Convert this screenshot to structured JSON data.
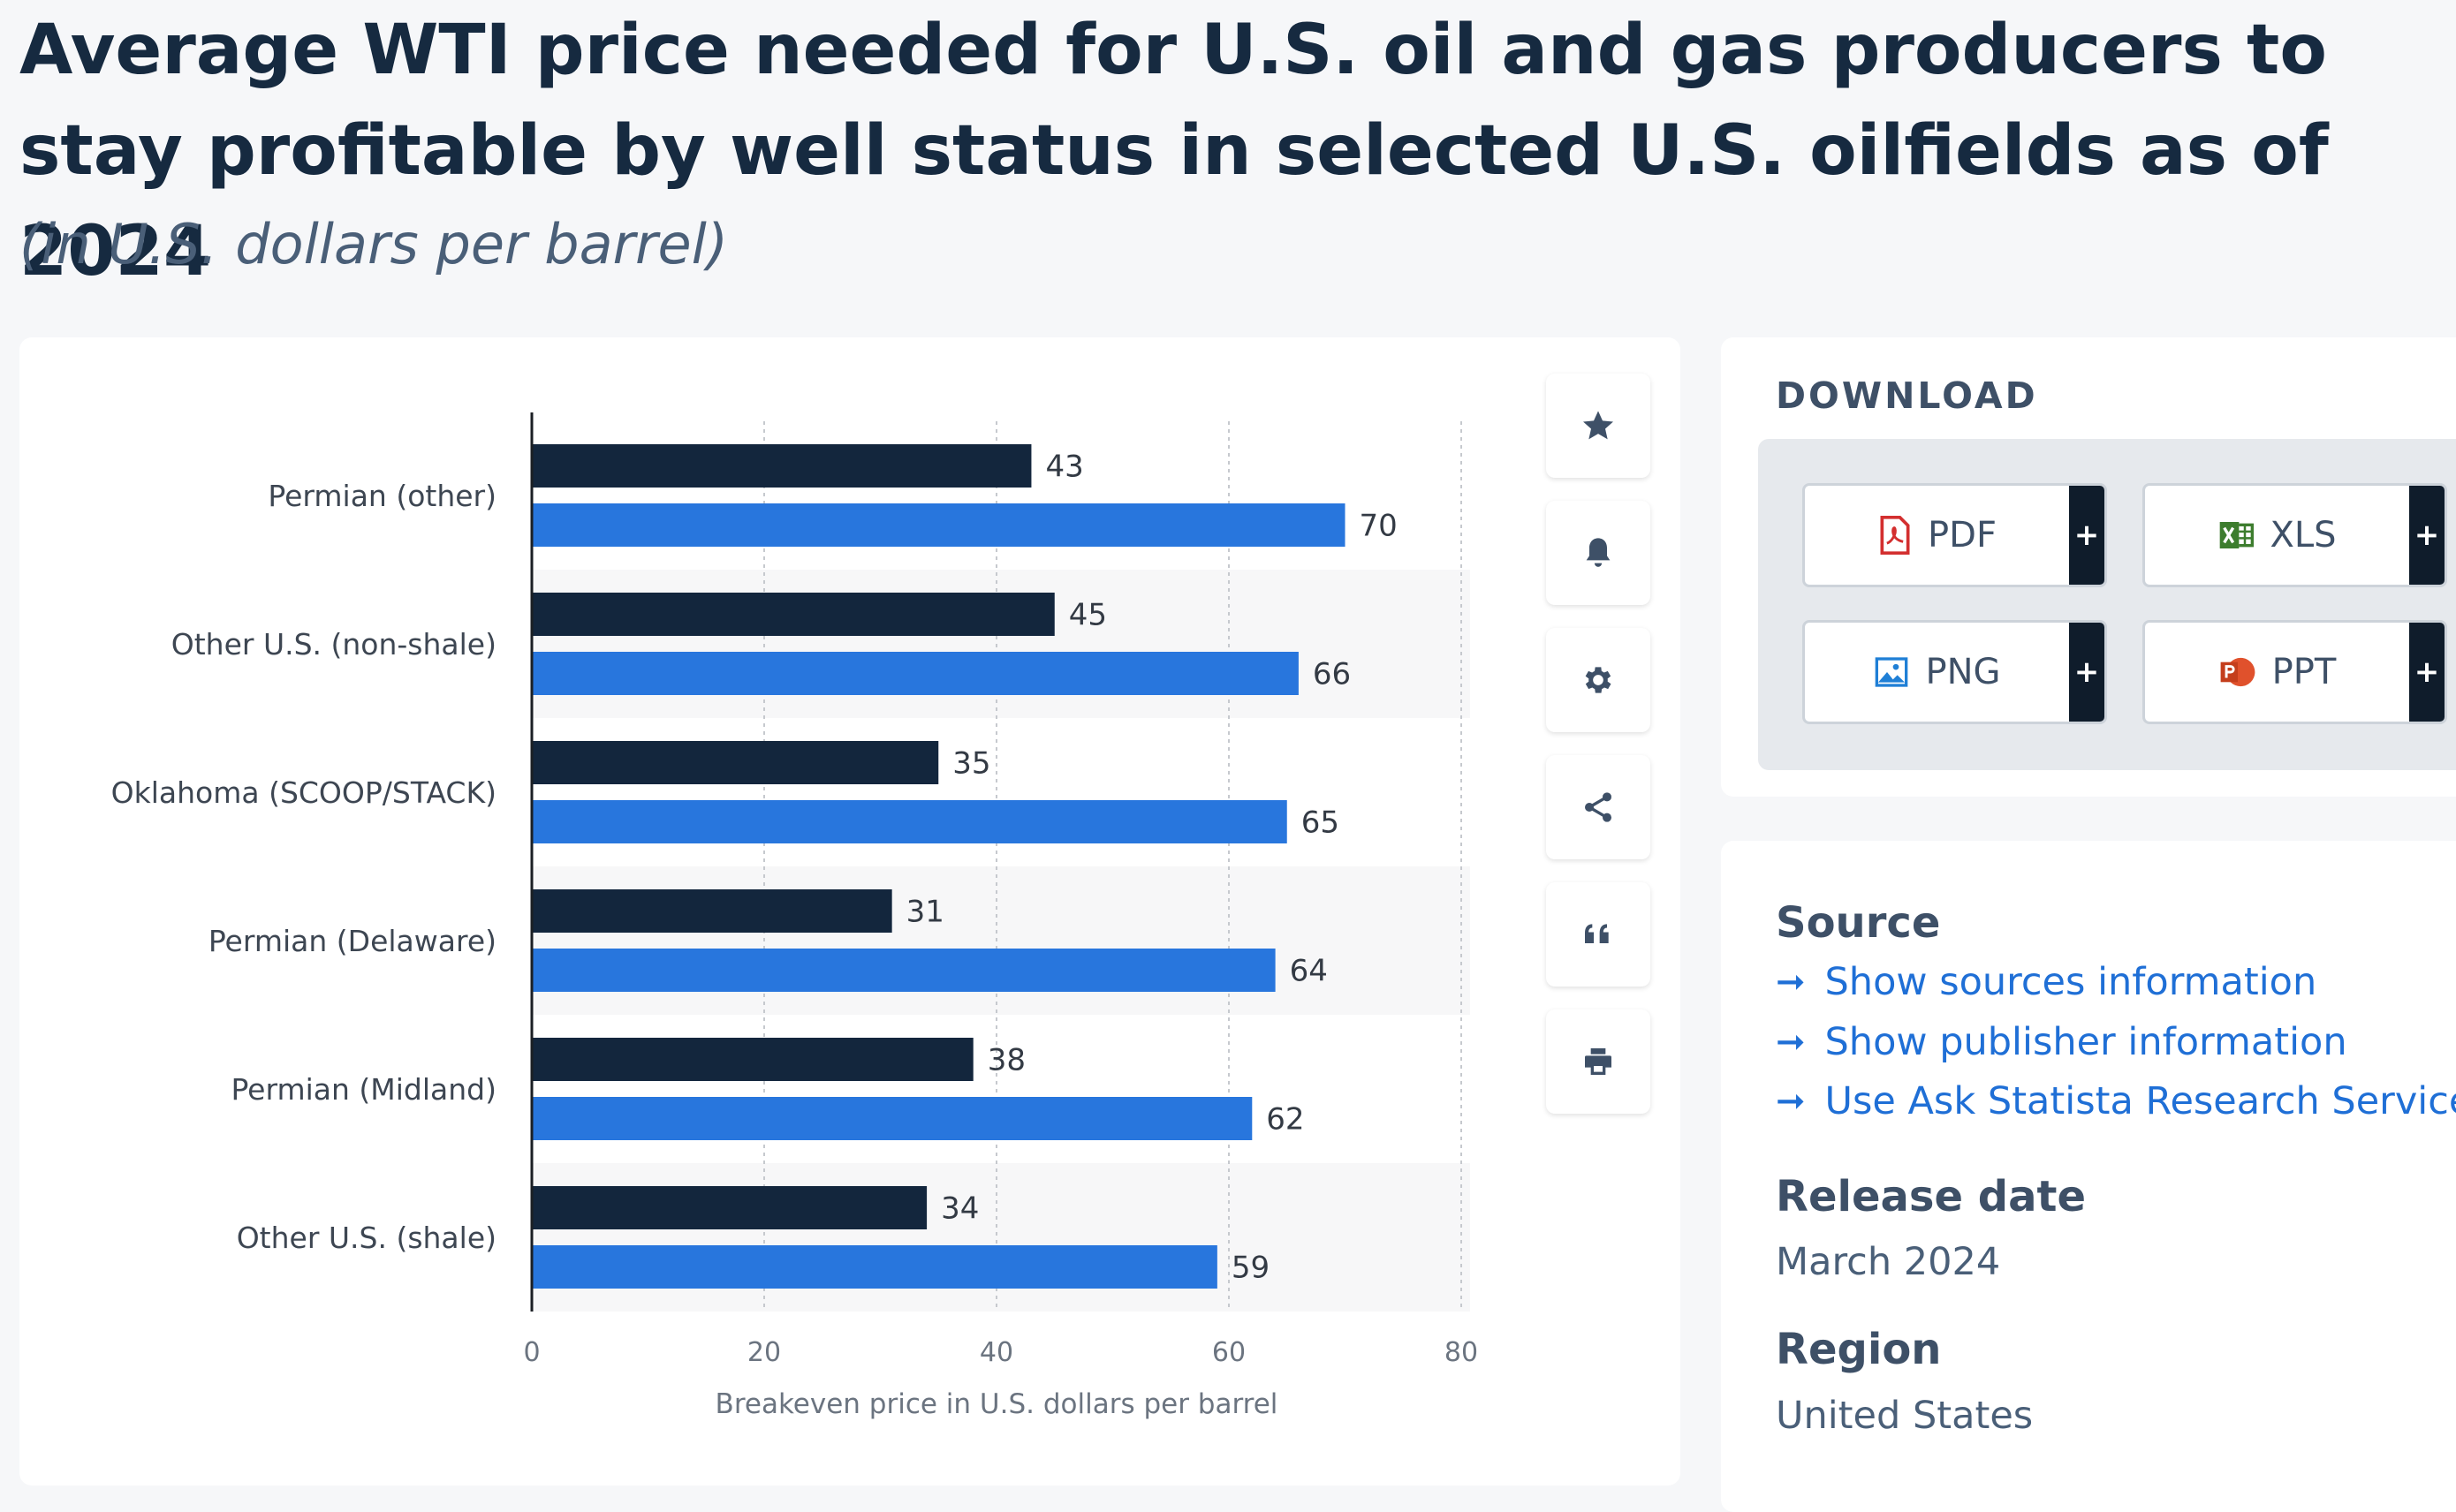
{
  "title": "Average WTI price needed for U.S. oil and gas producers to stay profitable by well status in selected U.S. oilfields as of 2024",
  "subtitle": "(in U.S. dollars per barrel)",
  "colors": {
    "series_dark": "#13263d",
    "series_blue": "#2876dd"
  },
  "chart_data": {
    "type": "bar",
    "orientation": "horizontal",
    "categories": [
      "Permian (other)",
      "Other U.S. (non-shale)",
      "Oklahoma (SCOOP/STACK)",
      "Permian (Delaware)",
      "Permian (Midland)",
      "Other U.S. (shale)"
    ],
    "series": [
      {
        "name": "Series 1",
        "values": [
          43,
          45,
          35,
          31,
          38,
          34
        ]
      },
      {
        "name": "Series 2",
        "values": [
          70,
          66,
          65,
          64,
          62,
          59
        ]
      }
    ],
    "xlabel": "Breakeven price in U.S. dollars per barrel",
    "xlim": [
      0,
      80
    ],
    "xticks": [
      0,
      20,
      40,
      60,
      80
    ],
    "grid": true
  },
  "toolbar": {
    "icons": [
      "star-icon",
      "bell-icon",
      "gear-icon",
      "share-icon",
      "quote-icon",
      "print-icon"
    ]
  },
  "download": {
    "title": "DOWNLOAD",
    "buttons": [
      {
        "label": "PDF",
        "icon": "pdf-icon",
        "plus": "+"
      },
      {
        "label": "XLS",
        "icon": "xls-icon",
        "plus": "+"
      },
      {
        "label": "PNG",
        "icon": "png-icon",
        "plus": "+"
      },
      {
        "label": "PPT",
        "icon": "ppt-icon",
        "plus": "+"
      }
    ]
  },
  "info": {
    "source_heading": "Source",
    "links": [
      "Show sources information",
      "Show publisher information",
      "Use Ask Statista Research Service"
    ],
    "release_heading": "Release date",
    "release_value": "March 2024",
    "region_heading": "Region",
    "region_value": "United States"
  }
}
